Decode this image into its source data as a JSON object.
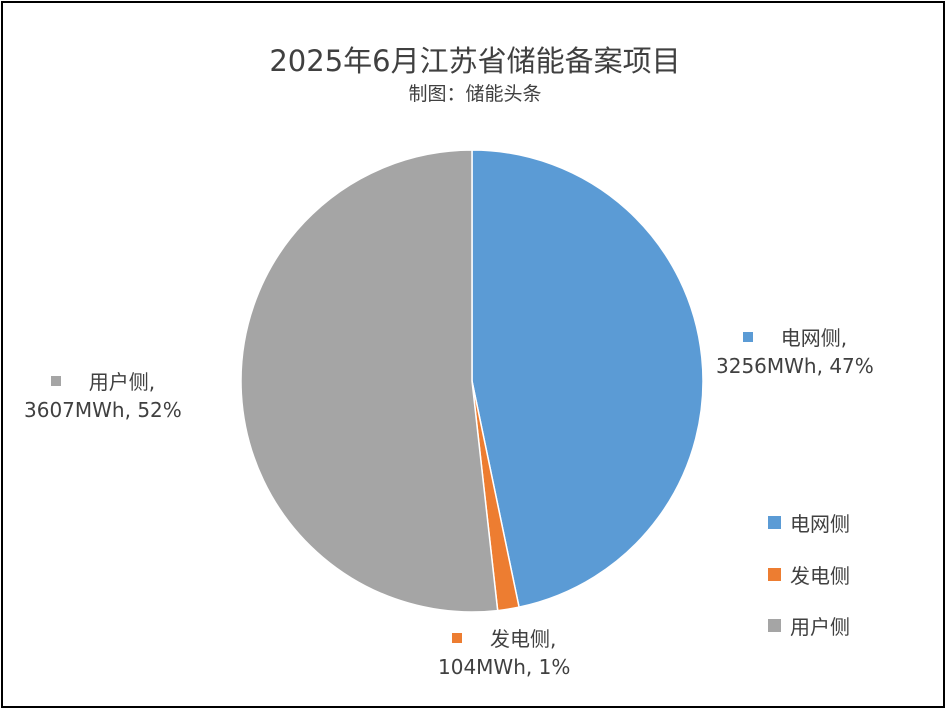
{
  "chart_data": {
    "type": "pie",
    "title": "2025年6月江苏省储能备案项目",
    "subtitle": "制图：储能头条",
    "slices": [
      {
        "name": "电网侧",
        "value": 3256,
        "unit": "MWh",
        "percent": "47%",
        "color": "#5b9bd5",
        "label_line1": "电网侧,",
        "label_line2": "3256MWh, 47%"
      },
      {
        "name": "发电侧",
        "value": 104,
        "unit": "MWh",
        "percent": "1%",
        "color": "#ed7d31",
        "label_line1": "发电侧,",
        "label_line2": "104MWh, 1%"
      },
      {
        "name": "用户侧",
        "value": 3607,
        "unit": "MWh",
        "percent": "52%",
        "color": "#a5a5a5",
        "label_line1": "用户侧,",
        "label_line2": "3607MWh, 52%"
      }
    ],
    "legend": {
      "position": "right",
      "items": [
        "电网侧",
        "发电侧",
        "用户侧"
      ]
    }
  }
}
